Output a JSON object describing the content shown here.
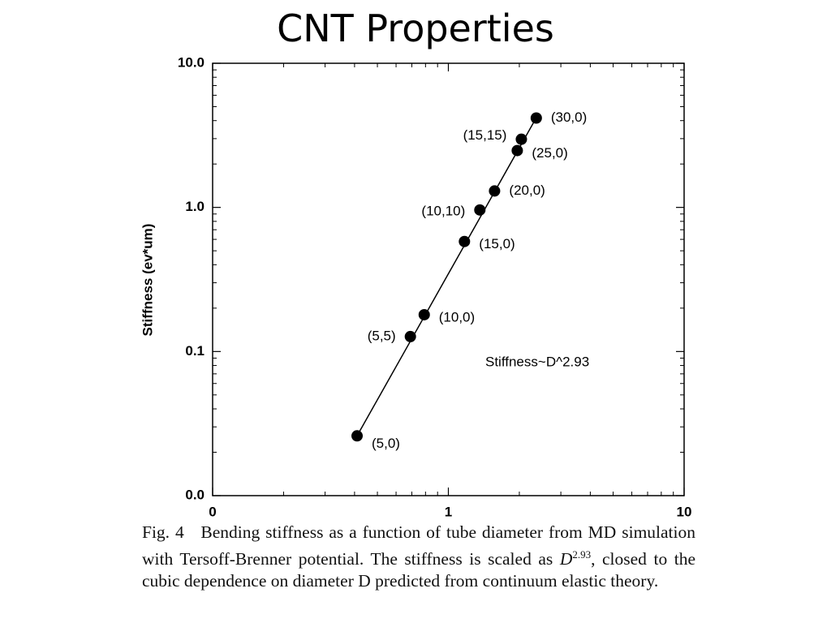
{
  "title": "CNT Properties",
  "chart_data": {
    "type": "scatter",
    "ylabel": "Stiffness (ev*um)",
    "xscale": "log",
    "yscale": "log",
    "xlim": [
      0.1,
      10
    ],
    "xticks": [
      {
        "value": 0.1,
        "label": "0"
      },
      1,
      10
    ],
    "ylim": [
      0.01,
      10
    ],
    "yticks": [
      {
        "value": 0.01,
        "label": "0.0"
      },
      {
        "value": 0.1,
        "label": "0.1"
      },
      {
        "value": 1,
        "label": "1.0"
      },
      {
        "value": 10,
        "label": "10.0"
      }
    ],
    "color": "#000000",
    "labels": [
      "(5,0)",
      "(5,5)",
      "(10,0)",
      "(15,0)",
      "(10,10)",
      "(20,0)",
      "(25,0)",
      "(15,15)",
      "(30,0)"
    ],
    "x": [
      0.41,
      0.69,
      0.79,
      1.17,
      1.36,
      1.57,
      1.96,
      2.04,
      2.36
    ],
    "y": [
      0.026,
      0.127,
      0.18,
      0.58,
      0.96,
      1.3,
      2.48,
      2.97,
      4.17
    ],
    "fit_line": {
      "x": [
        0.41,
        2.4
      ],
      "y": [
        0.026,
        4.4
      ]
    },
    "annotation": "Stiffness~D^2.93"
  },
  "caption": {
    "label": "Fig. 4",
    "text_before": "Bending stiffness as a function of tube diameter from MD simulation with Tersoff-Brenner potential. The stiffness is scaled as",
    "symbol": "D",
    "exponent": "2.93",
    "text_after": ", closed to the cubic dependence on diameter D predicted from continuum elastic theory."
  }
}
